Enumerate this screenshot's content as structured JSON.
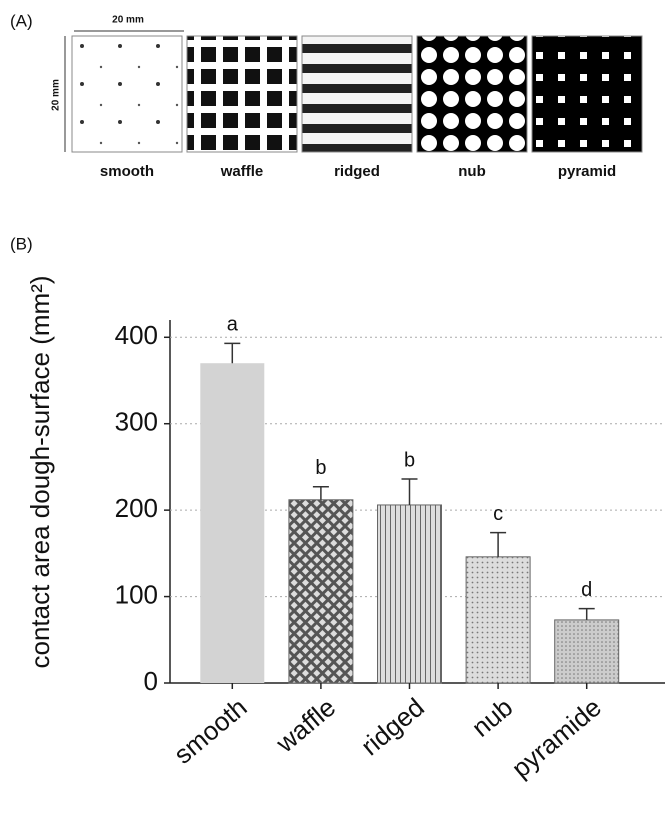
{
  "panel_a": {
    "label": "(A)",
    "scale_top": "20 mm",
    "scale_side": "20 mm",
    "images": [
      "smooth",
      "waffle",
      "ridged",
      "nub",
      "pyramid"
    ]
  },
  "panel_b_label": "(B)",
  "chart_data": {
    "type": "bar",
    "ylabel": "contact area dough-surface (mm²)",
    "categories": [
      "smooth",
      "waffle",
      "ridged",
      "nub",
      "pyramide"
    ],
    "values": [
      370,
      212,
      206,
      146,
      73
    ],
    "errors": [
      23,
      15,
      30,
      28,
      13
    ],
    "group_letters": [
      "a",
      "b",
      "b",
      "c",
      "d"
    ],
    "ylim": [
      0,
      420
    ],
    "yticks": [
      0,
      100,
      200,
      300,
      400
    ],
    "grid": true
  }
}
